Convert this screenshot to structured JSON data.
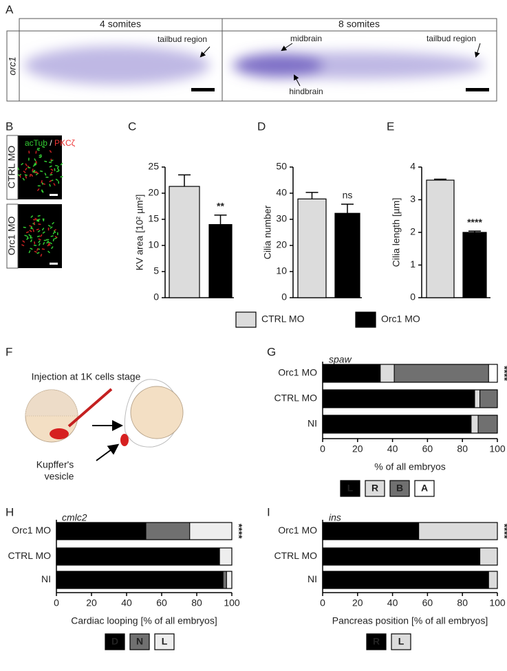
{
  "panel_labels": [
    "A",
    "B",
    "C",
    "D",
    "E",
    "F",
    "G",
    "H",
    "I"
  ],
  "panel_a": {
    "columns": [
      "4 somites",
      "8 somites"
    ],
    "row_label": "orc1",
    "annotations": [
      "tailbud region",
      "midbrain",
      "hindbrain",
      "tailbud region"
    ]
  },
  "panel_b": {
    "stain_1": "acTub",
    "separator": "/",
    "stain_2": "PKCζ",
    "rows": [
      "CTRL MO",
      "Orc1 MO"
    ]
  },
  "panel_f": {
    "title": "Injection at 1K cells stage",
    "label_lines": [
      "Kupffer's",
      "vesicle"
    ]
  },
  "bar_legend": [
    {
      "name": "CTRL MO",
      "color": "#dcdcdc"
    },
    {
      "name": "Orc1 MO",
      "color": "#000000"
    }
  ],
  "chart_data": [
    {
      "type": "bar",
      "ylabel": "KV area [10² µm²]",
      "values": [
        21.3,
        14
      ],
      "errors": [
        2.2,
        1.8
      ],
      "annotation": "**",
      "ylim": [
        0,
        25
      ],
      "yticks": [
        0,
        5,
        10,
        15,
        20,
        25
      ]
    },
    {
      "type": "bar",
      "ylabel": "Cilia number",
      "values": [
        37.8,
        32.3
      ],
      "errors": [
        2.5,
        3.5
      ],
      "annotation": "ns",
      "ylim": [
        0,
        50
      ],
      "yticks": [
        0,
        10,
        20,
        30,
        40,
        50
      ]
    },
    {
      "type": "bar",
      "ylabel": "Cilia length [µm]",
      "values": [
        3.6,
        2.0
      ],
      "errors": [
        0.03,
        0.04
      ],
      "annotation": "****",
      "ylim": [
        0,
        4
      ],
      "yticks": [
        0,
        1,
        2,
        3,
        4
      ]
    },
    {
      "type": "stacked_barh",
      "subtitle": "spaw",
      "xlabel": "% of all embryos",
      "annotation": "****",
      "categories": [
        "Orc1 MO",
        "CTRL MO",
        "NI"
      ],
      "series": [
        {
          "name": "L",
          "color": "#000000",
          "values": [
            33,
            87,
            85
          ]
        },
        {
          "name": "R",
          "color": "#dcdcdc",
          "values": [
            8,
            3,
            4
          ]
        },
        {
          "name": "B",
          "color": "#707070",
          "values": [
            54,
            10,
            11
          ]
        },
        {
          "name": "A",
          "color": "#ffffff",
          "values": [
            5,
            0,
            0
          ]
        }
      ],
      "xlim": [
        0,
        100
      ],
      "xticks": [
        0,
        20,
        40,
        60,
        80,
        100
      ]
    },
    {
      "type": "stacked_barh",
      "subtitle": "cmlc2",
      "xlabel": "Cardiac looping [% of all embryos]",
      "annotation": "****",
      "categories": [
        "Orc1 MO",
        "CTRL MO",
        "NI"
      ],
      "series": [
        {
          "name": "D",
          "color": "#000000",
          "values": [
            51,
            93,
            95
          ]
        },
        {
          "name": "N",
          "color": "#707070",
          "values": [
            25,
            0,
            2
          ]
        },
        {
          "name": "L",
          "color": "#eeeeee",
          "values": [
            24,
            7,
            3
          ]
        }
      ],
      "xlim": [
        0,
        100
      ],
      "xticks": [
        0,
        20,
        40,
        60,
        80,
        100
      ]
    },
    {
      "type": "stacked_barh",
      "subtitle": "ins",
      "xlabel": "Pancreas position [% of all embryos]",
      "annotation": "****",
      "categories": [
        "Orc1 MO",
        "CTRL MO",
        "NI"
      ],
      "series": [
        {
          "name": "R",
          "color": "#000000",
          "values": [
            55,
            90,
            95
          ]
        },
        {
          "name": "L",
          "color": "#dcdcdc",
          "values": [
            45,
            10,
            5
          ]
        }
      ],
      "xlim": [
        0,
        100
      ],
      "xticks": [
        0,
        20,
        40,
        60,
        80,
        100
      ]
    }
  ]
}
